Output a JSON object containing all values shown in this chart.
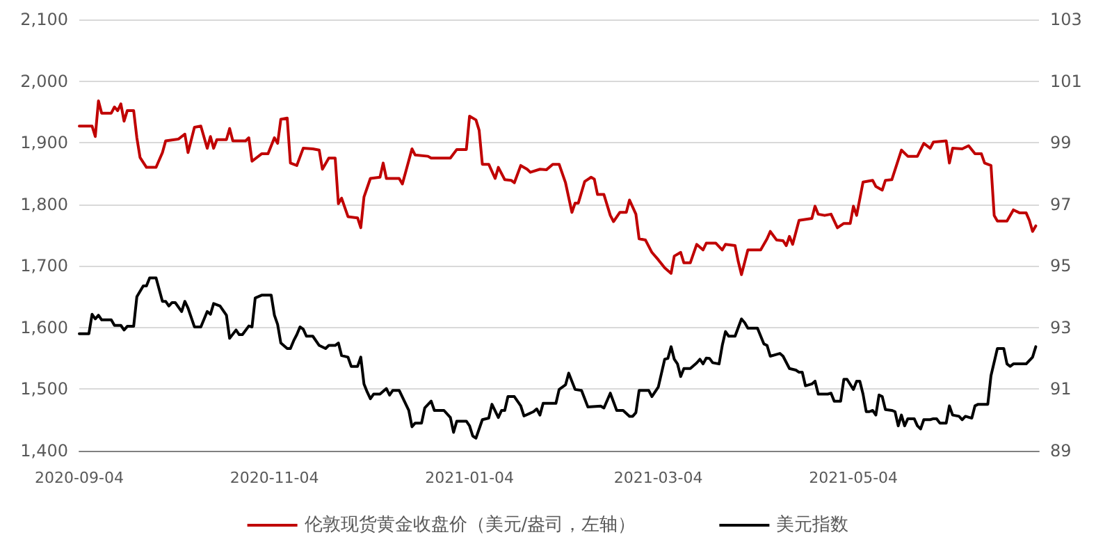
{
  "chart_data": {
    "type": "line",
    "legend": "bottom",
    "grid": "y",
    "marker": "none",
    "line_style": "solid",
    "xlim": [
      "2020-09-04",
      "2021-07-01"
    ],
    "xticks": [
      "2020-09-04",
      "2020-11-04",
      "2021-01-04",
      "2021-03-04",
      "2021-05-04"
    ],
    "ylim": [
      1400,
      2100
    ],
    "yticks": [
      {
        "value": 1400,
        "label": "1,400"
      },
      {
        "value": 1500,
        "label": "1,500"
      },
      {
        "value": 1600,
        "label": "1,600"
      },
      {
        "value": 1700,
        "label": "1,700"
      },
      {
        "value": 1800,
        "label": "1,800"
      },
      {
        "value": 1900,
        "label": "1,900"
      },
      {
        "value": 2000,
        "label": "2,000"
      },
      {
        "value": 2100,
        "label": "2,100"
      }
    ],
    "y2lim": [
      89,
      103
    ],
    "y2ticks": [
      89,
      91,
      93,
      95,
      97,
      99,
      101,
      103
    ],
    "series": [
      {
        "name": "伦敦现货黄金收盘价（美元/盎司，左轴）",
        "color": "#c00000",
        "x": [
          "2020-09-04",
          "2020-09-08",
          "2020-09-09",
          "2020-09-10",
          "2020-09-11",
          "2020-09-14",
          "2020-09-15",
          "2020-09-16",
          "2020-09-17",
          "2020-09-18",
          "2020-09-19",
          "2020-09-21",
          "2020-09-22",
          "2020-09-23",
          "2020-09-25",
          "2020-09-28",
          "2020-09-30",
          "2020-10-01",
          "2020-10-05",
          "2020-10-07",
          "2020-10-08",
          "2020-10-10",
          "2020-10-12",
          "2020-10-14",
          "2020-10-15",
          "2020-10-16",
          "2020-10-17",
          "2020-10-20",
          "2020-10-21",
          "2020-10-22",
          "2020-10-26",
          "2020-10-27",
          "2020-10-28",
          "2020-10-31",
          "2020-11-02",
          "2020-11-04",
          "2020-11-05",
          "2020-11-06",
          "2020-11-08",
          "2020-11-09",
          "2020-11-11",
          "2020-11-13",
          "2020-11-16",
          "2020-11-18",
          "2020-11-19",
          "2020-11-21",
          "2020-11-23",
          "2020-11-24",
          "2020-11-25",
          "2020-11-27",
          "2020-11-30",
          "2020-12-01",
          "2020-12-02",
          "2020-12-04",
          "2020-12-07",
          "2020-12-08",
          "2020-12-09",
          "2020-12-13",
          "2020-12-14",
          "2020-12-15",
          "2020-12-17",
          "2020-12-18",
          "2020-12-22",
          "2020-12-23",
          "2020-12-29",
          "2020-12-31",
          "2021-01-03",
          "2021-01-04",
          "2021-01-06",
          "2021-01-07",
          "2021-01-08",
          "2021-01-10",
          "2021-01-12",
          "2021-01-13",
          "2021-01-15",
          "2021-01-17",
          "2021-01-18",
          "2021-01-20",
          "2021-01-22",
          "2021-01-23",
          "2021-01-26",
          "2021-01-28",
          "2021-01-30",
          "2021-02-01",
          "2021-02-03",
          "2021-02-05",
          "2021-02-06",
          "2021-02-07",
          "2021-02-09",
          "2021-02-11",
          "2021-02-12",
          "2021-02-13",
          "2021-02-15",
          "2021-02-17",
          "2021-02-18",
          "2021-02-20",
          "2021-02-22",
          "2021-02-23",
          "2021-02-25",
          "2021-02-26",
          "2021-02-28",
          "2021-03-02",
          "2021-03-04",
          "2021-03-06",
          "2021-03-08",
          "2021-03-09",
          "2021-03-11",
          "2021-03-12",
          "2021-03-14",
          "2021-03-16",
          "2021-03-18",
          "2021-03-19",
          "2021-03-22",
          "2021-03-24",
          "2021-03-25",
          "2021-03-28",
          "2021-03-29",
          "2021-03-30",
          "2021-04-01",
          "2021-04-05",
          "2021-04-07",
          "2021-04-08",
          "2021-04-10",
          "2021-04-12",
          "2021-04-13",
          "2021-04-14",
          "2021-04-15",
          "2021-04-17",
          "2021-04-21",
          "2021-04-22",
          "2021-04-23",
          "2021-04-25",
          "2021-04-27",
          "2021-04-29",
          "2021-05-01",
          "2021-05-03",
          "2021-05-04",
          "2021-05-05",
          "2021-05-07",
          "2021-05-10",
          "2021-05-11",
          "2021-05-13",
          "2021-05-14",
          "2021-05-16",
          "2021-05-19",
          "2021-05-21",
          "2021-05-24",
          "2021-05-26",
          "2021-05-28",
          "2021-05-29",
          "2021-06-02",
          "2021-06-03",
          "2021-06-04",
          "2021-06-07",
          "2021-06-09",
          "2021-06-11",
          "2021-06-13",
          "2021-06-14",
          "2021-06-16",
          "2021-06-17",
          "2021-06-18",
          "2021-06-21",
          "2021-06-23",
          "2021-06-25",
          "2021-06-27",
          "2021-06-28",
          "2021-06-29",
          "2021-06-30"
        ],
        "values": [
          1927,
          1927,
          1910,
          1968,
          1948,
          1948,
          1958,
          1952,
          1963,
          1935,
          1952,
          1952,
          1908,
          1876,
          1860,
          1860,
          1884,
          1903,
          1906,
          1914,
          1884,
          1925,
          1927,
          1891,
          1910,
          1891,
          1905,
          1905,
          1923,
          1903,
          1903,
          1908,
          1870,
          1882,
          1882,
          1908,
          1899,
          1938,
          1940,
          1867,
          1863,
          1891,
          1890,
          1888,
          1857,
          1875,
          1875,
          1801,
          1810,
          1780,
          1778,
          1762,
          1812,
          1842,
          1844,
          1867,
          1842,
          1842,
          1833,
          1852,
          1890,
          1880,
          1878,
          1875,
          1875,
          1889,
          1889,
          1943,
          1937,
          1920,
          1865,
          1865,
          1842,
          1860,
          1840,
          1839,
          1835,
          1863,
          1857,
          1852,
          1857,
          1856,
          1865,
          1865,
          1835,
          1787,
          1802,
          1802,
          1837,
          1844,
          1841,
          1816,
          1816,
          1782,
          1772,
          1787,
          1787,
          1807,
          1784,
          1744,
          1742,
          1722,
          1710,
          1697,
          1688,
          1716,
          1722,
          1705,
          1705,
          1735,
          1726,
          1737,
          1737,
          1726,
          1735,
          1733,
          1707,
          1686,
          1726,
          1726,
          1744,
          1756,
          1742,
          1741,
          1733,
          1748,
          1735,
          1774,
          1777,
          1797,
          1784,
          1782,
          1784,
          1762,
          1769,
          1769,
          1797,
          1782,
          1836,
          1839,
          1829,
          1823,
          1839,
          1840,
          1888,
          1878,
          1878,
          1899,
          1891,
          1901,
          1903,
          1867,
          1891,
          1890,
          1895,
          1882,
          1882,
          1867,
          1863,
          1782,
          1773,
          1773,
          1791,
          1786,
          1786,
          1774,
          1756,
          1765
        ]
      },
      {
        "name": "美元指数",
        "color": "#000000",
        "axis": "y2",
        "x": [
          "2020-09-04",
          "2020-09-07",
          "2020-09-08",
          "2020-09-09",
          "2020-09-10",
          "2020-09-11",
          "2020-09-14",
          "2020-09-15",
          "2020-09-17",
          "2020-09-18",
          "2020-09-19",
          "2020-09-21",
          "2020-09-22",
          "2020-09-24",
          "2020-09-25",
          "2020-09-26",
          "2020-09-28",
          "2020-09-30",
          "2020-10-01",
          "2020-10-02",
          "2020-10-03",
          "2020-10-04",
          "2020-10-06",
          "2020-10-07",
          "2020-10-08",
          "2020-10-10",
          "2020-10-12",
          "2020-10-14",
          "2020-10-15",
          "2020-10-16",
          "2020-10-18",
          "2020-10-20",
          "2020-10-21",
          "2020-10-23",
          "2020-10-24",
          "2020-10-25",
          "2020-10-27",
          "2020-10-28",
          "2020-10-29",
          "2020-10-31",
          "2020-11-03",
          "2020-11-04",
          "2020-11-05",
          "2020-11-06",
          "2020-11-08",
          "2020-11-09",
          "2020-11-10",
          "2020-11-11",
          "2020-11-12",
          "2020-11-13",
          "2020-11-14",
          "2020-11-16",
          "2020-11-18",
          "2020-11-20",
          "2020-11-21",
          "2020-11-23",
          "2020-11-24",
          "2020-11-25",
          "2020-11-27",
          "2020-11-28",
          "2020-11-30",
          "2020-12-01",
          "2020-12-02",
          "2020-12-03",
          "2020-12-04",
          "2020-12-05",
          "2020-12-07",
          "2020-12-09",
          "2020-12-10",
          "2020-12-11",
          "2020-12-13",
          "2020-12-16",
          "2020-12-17",
          "2020-12-18",
          "2020-12-20",
          "2020-12-21",
          "2020-12-23",
          "2020-12-24",
          "2020-12-27",
          "2020-12-29",
          "2020-12-30",
          "2020-12-31",
          "2021-01-03",
          "2021-01-04",
          "2021-01-05",
          "2021-01-06",
          "2021-01-08",
          "2021-01-10",
          "2021-01-11",
          "2021-01-13",
          "2021-01-14",
          "2021-01-15",
          "2021-01-16",
          "2021-01-18",
          "2021-01-20",
          "2021-01-21",
          "2021-01-24",
          "2021-01-25",
          "2021-01-26",
          "2021-01-27",
          "2021-01-31",
          "2021-02-01",
          "2021-02-03",
          "2021-02-04",
          "2021-02-06",
          "2021-02-08",
          "2021-02-10",
          "2021-02-14",
          "2021-02-15",
          "2021-02-17",
          "2021-02-19",
          "2021-02-21",
          "2021-02-23",
          "2021-02-24",
          "2021-02-25",
          "2021-02-26",
          "2021-03-01",
          "2021-03-02",
          "2021-03-04",
          "2021-03-06",
          "2021-03-07",
          "2021-03-08",
          "2021-03-09",
          "2021-03-10",
          "2021-03-11",
          "2021-03-12",
          "2021-03-14",
          "2021-03-16",
          "2021-03-17",
          "2021-03-18",
          "2021-03-19",
          "2021-03-20",
          "2021-03-21",
          "2021-03-23",
          "2021-03-24",
          "2021-03-25",
          "2021-03-26",
          "2021-03-28",
          "2021-03-30",
          "2021-03-31",
          "2021-04-01",
          "2021-04-04",
          "2021-04-06",
          "2021-04-07",
          "2021-04-08",
          "2021-04-11",
          "2021-04-12",
          "2021-04-14",
          "2021-04-16",
          "2021-04-17",
          "2021-04-18",
          "2021-04-19",
          "2021-04-21",
          "2021-04-22",
          "2021-04-23",
          "2021-04-26",
          "2021-04-27",
          "2021-04-28",
          "2021-04-30",
          "2021-05-01",
          "2021-05-02",
          "2021-05-04",
          "2021-05-05",
          "2021-05-06",
          "2021-05-07",
          "2021-05-08",
          "2021-05-09",
          "2021-05-10",
          "2021-05-11",
          "2021-05-12",
          "2021-05-13",
          "2021-05-14",
          "2021-05-16",
          "2021-05-17",
          "2021-05-18",
          "2021-05-19",
          "2021-05-20",
          "2021-05-21",
          "2021-05-23",
          "2021-05-24",
          "2021-05-25",
          "2021-05-26",
          "2021-05-28",
          "2021-05-29",
          "2021-05-30",
          "2021-05-31",
          "2021-06-02",
          "2021-06-03",
          "2021-06-04",
          "2021-06-06",
          "2021-06-07",
          "2021-06-08",
          "2021-06-10",
          "2021-06-11",
          "2021-06-12",
          "2021-06-15",
          "2021-06-16",
          "2021-06-18",
          "2021-06-20",
          "2021-06-21",
          "2021-06-22",
          "2021-06-23",
          "2021-06-27",
          "2021-06-29",
          "2021-06-30"
        ],
        "values": [
          92.8,
          92.8,
          93.43,
          93.28,
          93.4,
          93.25,
          93.25,
          93.07,
          93.07,
          92.92,
          93.04,
          93.04,
          94.0,
          94.35,
          94.35,
          94.61,
          94.61,
          93.85,
          93.85,
          93.7,
          93.81,
          93.81,
          93.52,
          93.85,
          93.63,
          93.02,
          93.02,
          93.52,
          93.43,
          93.78,
          93.7,
          93.4,
          92.65,
          92.92,
          92.77,
          92.77,
          93.05,
          93.02,
          93.96,
          94.05,
          94.05,
          93.4,
          93.1,
          92.5,
          92.32,
          92.32,
          92.57,
          92.77,
          93.02,
          92.95,
          92.72,
          92.72,
          92.42,
          92.32,
          92.42,
          92.42,
          92.5,
          92.09,
          92.04,
          91.74,
          91.74,
          92.04,
          91.17,
          90.91,
          90.69,
          90.84,
          90.84,
          91.02,
          90.81,
          90.96,
          90.96,
          90.31,
          89.78,
          89.9,
          89.9,
          90.39,
          90.61,
          90.31,
          90.31,
          90.08,
          89.6,
          89.96,
          89.96,
          89.81,
          89.48,
          89.41,
          90.01,
          90.06,
          90.51,
          90.08,
          90.31,
          90.31,
          90.76,
          90.76,
          90.46,
          90.13,
          90.27,
          90.36,
          90.16,
          90.54,
          90.54,
          90.99,
          91.14,
          91.52,
          90.99,
          90.96,
          90.42,
          90.45,
          90.39,
          90.87,
          90.31,
          90.31,
          90.12,
          90.12,
          90.24,
          90.96,
          90.96,
          90.76,
          91.07,
          91.97,
          92.0,
          92.38,
          91.97,
          91.82,
          91.41,
          91.67,
          91.67,
          91.85,
          91.97,
          91.82,
          92.01,
          92.0,
          91.86,
          91.82,
          92.42,
          92.87,
          92.72,
          92.72,
          93.28,
          93.16,
          92.98,
          92.98,
          92.47,
          92.42,
          92.07,
          92.16,
          92.07,
          91.67,
          91.62,
          91.55,
          91.55,
          91.11,
          91.17,
          91.26,
          90.84,
          90.84,
          90.87,
          90.61,
          90.61,
          91.32,
          91.32,
          90.99,
          91.26,
          91.26,
          90.84,
          90.27,
          90.27,
          90.31,
          90.16,
          90.81,
          90.76,
          90.34,
          90.31,
          90.27,
          89.81,
          90.16,
          89.81,
          90.04,
          90.04,
          89.81,
          89.71,
          90.01,
          90.01,
          90.04,
          90.04,
          89.9,
          89.9,
          90.46,
          90.16,
          90.12,
          90.01,
          90.12,
          90.06,
          90.46,
          90.51,
          90.51,
          91.44,
          92.32,
          92.32,
          91.82,
          91.74,
          91.82,
          91.82,
          92.04,
          92.38
        ]
      }
    ]
  }
}
